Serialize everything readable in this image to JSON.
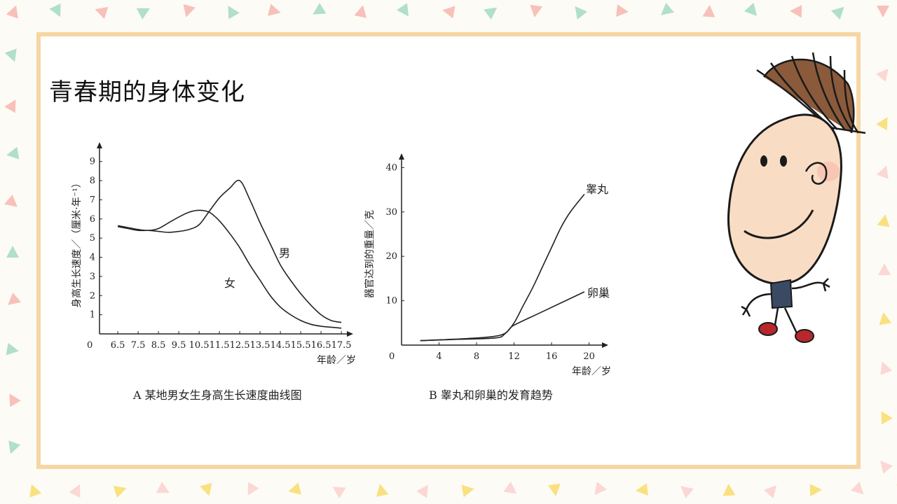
{
  "slide": {
    "title": "青春期的身体变化"
  },
  "colors": {
    "frame": "#f6d6a3",
    "background": "#fdfbf6",
    "pattern": [
      "#f4a8a0",
      "#f7d64e",
      "#8fd3b8",
      "#f9c7c7"
    ]
  },
  "decorations": {
    "mascot": "cartoon-boy-illustration"
  },
  "chart_data": [
    {
      "type": "line",
      "caption": "A 某地男女生身高生长速度曲线图",
      "xlabel": "年龄／岁",
      "ylabel": "身高生长速度／（厘米·年⁻¹）",
      "origin_label": "0",
      "x_ticks": [
        "6.5",
        "7.5",
        "8.5",
        "9.5",
        "10.5",
        "11.5",
        "12.5",
        "13.5",
        "14.5",
        "15.5",
        "16.5",
        "17.5"
      ],
      "y_ticks": [
        "1",
        "2",
        "3",
        "4",
        "5",
        "6",
        "7",
        "8",
        "9"
      ],
      "xlim": [
        5.6,
        17.6
      ],
      "ylim": [
        0,
        9.5
      ],
      "series": [
        {
          "name": "男",
          "x": [
            6.5,
            7.0,
            7.5,
            8.0,
            8.5,
            9.0,
            9.5,
            10.0,
            10.5,
            11.0,
            11.5,
            12.0,
            12.5,
            13.0,
            13.5,
            14.0,
            14.5,
            15.0,
            15.5,
            16.0,
            16.5,
            17.0,
            17.5
          ],
          "y": [
            5.6,
            5.5,
            5.4,
            5.4,
            5.35,
            5.3,
            5.35,
            5.45,
            5.7,
            6.4,
            7.1,
            7.6,
            8.0,
            7.0,
            5.8,
            4.7,
            3.6,
            2.8,
            2.1,
            1.5,
            1.0,
            0.7,
            0.6
          ]
        },
        {
          "name": "女",
          "x": [
            6.5,
            7.0,
            7.5,
            8.0,
            8.5,
            9.0,
            9.5,
            10.0,
            10.5,
            11.0,
            11.5,
            12.0,
            12.5,
            13.0,
            13.5,
            14.0,
            14.5,
            15.0,
            15.5,
            16.0,
            16.5,
            17.0,
            17.5
          ],
          "y": [
            5.65,
            5.55,
            5.45,
            5.4,
            5.5,
            5.8,
            6.1,
            6.35,
            6.45,
            6.35,
            5.9,
            5.25,
            4.5,
            3.6,
            2.8,
            2.0,
            1.4,
            1.0,
            0.7,
            0.5,
            0.4,
            0.35,
            0.3
          ]
        }
      ]
    },
    {
      "type": "line",
      "caption": "B 睾丸和卵巢的发育趋势",
      "xlabel": "年龄／岁",
      "ylabel": "器官达到的重量／克",
      "origin_label": "0",
      "x_ticks": [
        "4",
        "8",
        "12",
        "16",
        "20"
      ],
      "y_ticks": [
        "10",
        "20",
        "30",
        "40"
      ],
      "xlim": [
        0,
        21
      ],
      "ylim": [
        0,
        41
      ],
      "series": [
        {
          "name": "睾丸",
          "x": [
            2,
            6,
            10,
            11,
            12,
            13,
            14,
            15,
            16,
            17,
            18,
            19.5
          ],
          "y": [
            1,
            1.3,
            1.6,
            2.5,
            5,
            9,
            13,
            17.5,
            22,
            26.5,
            30,
            34
          ]
        },
        {
          "name": "卵巢",
          "x": [
            2,
            10,
            12,
            15,
            19.5
          ],
          "y": [
            1,
            2,
            4.5,
            7.5,
            12
          ]
        }
      ]
    }
  ]
}
